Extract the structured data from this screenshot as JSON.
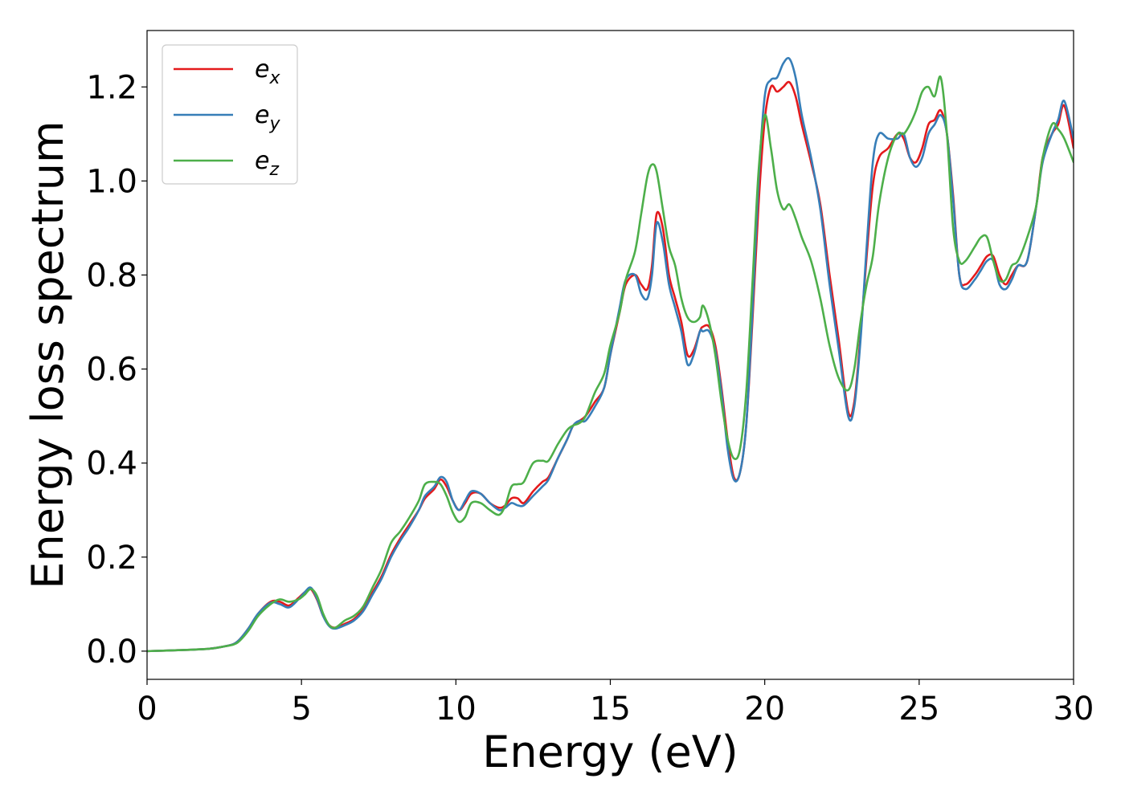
{
  "chart_data": {
    "type": "line",
    "title": "",
    "xlabel": "Energy (eV)",
    "ylabel": "Energy loss spectrum",
    "xlim": [
      0,
      30
    ],
    "ylim": [
      -0.06,
      1.32
    ],
    "xticks": [
      0,
      5,
      10,
      15,
      20,
      25,
      30
    ],
    "yticks": [
      0.0,
      0.2,
      0.4,
      0.6,
      0.8,
      1.0,
      1.2
    ],
    "xtick_labels": [
      "0",
      "5",
      "10",
      "15",
      "20",
      "25",
      "30"
    ],
    "ytick_labels": [
      "0.0",
      "0.2",
      "0.4",
      "0.6",
      "0.8",
      "1.0",
      "1.2"
    ],
    "grid": false,
    "legend_position": "top-left",
    "series": [
      {
        "name": "e_x",
        "label_base": "e",
        "label_sub": "x",
        "color": "#e41a1c",
        "x": [
          0,
          1,
          2,
          2.5,
          2.8,
          3.0,
          3.3,
          3.6,
          4.0,
          4.3,
          4.6,
          4.9,
          5.1,
          5.3,
          5.5,
          5.7,
          5.9,
          6.1,
          6.4,
          6.7,
          7.0,
          7.3,
          7.6,
          7.9,
          8.2,
          8.5,
          8.8,
          9.0,
          9.3,
          9.5,
          9.7,
          9.9,
          10.1,
          10.3,
          10.5,
          10.8,
          11.1,
          11.4,
          11.6,
          11.8,
          12.0,
          12.2,
          12.5,
          12.8,
          13.0,
          13.3,
          13.6,
          13.8,
          14.0,
          14.2,
          14.5,
          14.8,
          15.0,
          15.3,
          15.5,
          15.8,
          16.0,
          16.2,
          16.35,
          16.5,
          16.7,
          16.9,
          17.1,
          17.3,
          17.5,
          17.7,
          17.9,
          18.0,
          18.2,
          18.4,
          18.6,
          18.8,
          19.0,
          19.2,
          19.4,
          19.6,
          19.8,
          20.0,
          20.2,
          20.4,
          20.6,
          20.8,
          21.0,
          21.2,
          21.5,
          21.8,
          22.1,
          22.4,
          22.7,
          22.9,
          23.1,
          23.3,
          23.5,
          23.7,
          24.0,
          24.3,
          24.5,
          24.7,
          24.9,
          25.1,
          25.3,
          25.5,
          25.7,
          25.9,
          26.1,
          26.3,
          26.5,
          26.8,
          27.0,
          27.2,
          27.4,
          27.6,
          27.8,
          28.0,
          28.2,
          28.5,
          28.8,
          29.0,
          29.3,
          29.5,
          29.7,
          30.0
        ],
        "y": [
          0.0,
          0.002,
          0.005,
          0.01,
          0.015,
          0.025,
          0.05,
          0.08,
          0.105,
          0.105,
          0.097,
          0.113,
          0.125,
          0.132,
          0.11,
          0.075,
          0.055,
          0.05,
          0.058,
          0.068,
          0.09,
          0.125,
          0.16,
          0.205,
          0.24,
          0.27,
          0.3,
          0.325,
          0.345,
          0.365,
          0.35,
          0.32,
          0.3,
          0.315,
          0.335,
          0.335,
          0.315,
          0.305,
          0.31,
          0.325,
          0.325,
          0.315,
          0.34,
          0.36,
          0.37,
          0.41,
          0.45,
          0.48,
          0.49,
          0.5,
          0.53,
          0.56,
          0.63,
          0.72,
          0.78,
          0.8,
          0.78,
          0.77,
          0.82,
          0.93,
          0.9,
          0.8,
          0.75,
          0.7,
          0.63,
          0.64,
          0.68,
          0.69,
          0.69,
          0.65,
          0.56,
          0.45,
          0.37,
          0.38,
          0.48,
          0.7,
          0.95,
          1.13,
          1.2,
          1.19,
          1.2,
          1.21,
          1.18,
          1.12,
          1.04,
          0.95,
          0.8,
          0.66,
          0.51,
          0.53,
          0.67,
          0.84,
          0.99,
          1.05,
          1.07,
          1.1,
          1.09,
          1.05,
          1.04,
          1.07,
          1.12,
          1.13,
          1.15,
          1.1,
          0.97,
          0.8,
          0.78,
          0.8,
          0.82,
          0.84,
          0.84,
          0.8,
          0.78,
          0.8,
          0.82,
          0.83,
          0.95,
          1.05,
          1.1,
          1.12,
          1.16,
          1.07
        ]
      },
      {
        "name": "e_y",
        "label_base": "e",
        "label_sub": "y",
        "color": "#377eb8",
        "x": [
          0,
          1,
          2,
          2.5,
          2.8,
          3.0,
          3.3,
          3.6,
          4.0,
          4.3,
          4.6,
          4.9,
          5.1,
          5.3,
          5.5,
          5.7,
          5.9,
          6.1,
          6.4,
          6.7,
          7.0,
          7.3,
          7.6,
          7.9,
          8.2,
          8.5,
          8.8,
          9.0,
          9.3,
          9.5,
          9.7,
          9.9,
          10.1,
          10.3,
          10.5,
          10.8,
          11.1,
          11.4,
          11.6,
          11.8,
          12.0,
          12.2,
          12.5,
          12.8,
          13.0,
          13.3,
          13.6,
          13.8,
          14.0,
          14.2,
          14.5,
          14.8,
          15.0,
          15.3,
          15.5,
          15.8,
          16.0,
          16.2,
          16.35,
          16.5,
          16.7,
          16.9,
          17.1,
          17.3,
          17.5,
          17.7,
          17.9,
          18.0,
          18.2,
          18.4,
          18.6,
          18.8,
          19.0,
          19.2,
          19.4,
          19.6,
          19.8,
          20.0,
          20.2,
          20.4,
          20.6,
          20.8,
          21.0,
          21.2,
          21.5,
          21.8,
          22.1,
          22.4,
          22.7,
          22.9,
          23.1,
          23.3,
          23.5,
          23.7,
          24.0,
          24.3,
          24.5,
          24.7,
          24.9,
          25.1,
          25.3,
          25.5,
          25.7,
          25.9,
          26.1,
          26.3,
          26.5,
          26.8,
          27.0,
          27.2,
          27.4,
          27.6,
          27.8,
          28.0,
          28.2,
          28.5,
          28.8,
          29.0,
          29.3,
          29.5,
          29.7,
          30.0
        ],
        "y": [
          0.0,
          0.002,
          0.005,
          0.01,
          0.015,
          0.025,
          0.05,
          0.08,
          0.103,
          0.1,
          0.093,
          0.11,
          0.125,
          0.135,
          0.112,
          0.075,
          0.053,
          0.048,
          0.055,
          0.065,
          0.085,
          0.12,
          0.155,
          0.2,
          0.235,
          0.265,
          0.3,
          0.33,
          0.35,
          0.37,
          0.36,
          0.32,
          0.3,
          0.32,
          0.34,
          0.335,
          0.315,
          0.3,
          0.305,
          0.315,
          0.31,
          0.31,
          0.33,
          0.35,
          0.365,
          0.41,
          0.45,
          0.48,
          0.49,
          0.49,
          0.52,
          0.56,
          0.63,
          0.73,
          0.79,
          0.8,
          0.76,
          0.75,
          0.8,
          0.91,
          0.87,
          0.78,
          0.73,
          0.68,
          0.61,
          0.63,
          0.68,
          0.68,
          0.68,
          0.64,
          0.55,
          0.43,
          0.365,
          0.38,
          0.48,
          0.72,
          1.0,
          1.18,
          1.215,
          1.22,
          1.25,
          1.26,
          1.22,
          1.14,
          1.05,
          0.94,
          0.78,
          0.64,
          0.5,
          0.52,
          0.66,
          0.86,
          1.04,
          1.1,
          1.09,
          1.09,
          1.1,
          1.05,
          1.03,
          1.05,
          1.1,
          1.12,
          1.14,
          1.1,
          0.96,
          0.8,
          0.77,
          0.79,
          0.81,
          0.83,
          0.83,
          0.78,
          0.77,
          0.79,
          0.82,
          0.83,
          0.95,
          1.04,
          1.1,
          1.13,
          1.17,
          1.09
        ]
      },
      {
        "name": "e_z",
        "label_base": "e",
        "label_sub": "z",
        "color": "#4daf4a",
        "x": [
          0,
          1,
          2,
          2.5,
          2.8,
          3.0,
          3.3,
          3.6,
          4.0,
          4.3,
          4.6,
          4.9,
          5.1,
          5.3,
          5.5,
          5.7,
          5.9,
          6.1,
          6.4,
          6.7,
          7.0,
          7.3,
          7.6,
          7.9,
          8.2,
          8.5,
          8.8,
          9.0,
          9.3,
          9.5,
          9.7,
          9.9,
          10.1,
          10.3,
          10.5,
          10.8,
          11.1,
          11.4,
          11.6,
          11.8,
          12.0,
          12.2,
          12.5,
          12.8,
          13.0,
          13.3,
          13.6,
          13.8,
          14.0,
          14.2,
          14.5,
          14.8,
          15.0,
          15.3,
          15.5,
          15.8,
          16.0,
          16.2,
          16.35,
          16.5,
          16.7,
          16.9,
          17.1,
          17.3,
          17.5,
          17.7,
          17.9,
          18.0,
          18.2,
          18.4,
          18.6,
          18.8,
          19.0,
          19.2,
          19.4,
          19.6,
          19.8,
          20.0,
          20.2,
          20.4,
          20.6,
          20.8,
          21.0,
          21.2,
          21.5,
          21.8,
          22.1,
          22.4,
          22.7,
          22.9,
          23.1,
          23.3,
          23.5,
          23.7,
          24.0,
          24.3,
          24.5,
          24.7,
          24.9,
          25.1,
          25.3,
          25.5,
          25.7,
          25.9,
          26.1,
          26.3,
          26.5,
          26.8,
          27.0,
          27.2,
          27.4,
          27.6,
          27.8,
          28.0,
          28.2,
          28.5,
          28.8,
          29.0,
          29.3,
          29.5,
          29.7,
          30.0
        ],
        "y": [
          0.0,
          0.002,
          0.005,
          0.01,
          0.014,
          0.022,
          0.045,
          0.075,
          0.1,
          0.11,
          0.105,
          0.11,
          0.12,
          0.132,
          0.118,
          0.08,
          0.055,
          0.05,
          0.065,
          0.075,
          0.095,
          0.135,
          0.175,
          0.23,
          0.255,
          0.285,
          0.32,
          0.355,
          0.36,
          0.355,
          0.33,
          0.295,
          0.275,
          0.285,
          0.315,
          0.315,
          0.3,
          0.29,
          0.31,
          0.35,
          0.355,
          0.36,
          0.4,
          0.405,
          0.405,
          0.44,
          0.47,
          0.48,
          0.485,
          0.5,
          0.55,
          0.59,
          0.65,
          0.72,
          0.79,
          0.85,
          0.93,
          1.01,
          1.035,
          1.02,
          0.94,
          0.86,
          0.82,
          0.75,
          0.71,
          0.7,
          0.71,
          0.735,
          0.7,
          0.63,
          0.53,
          0.45,
          0.41,
          0.43,
          0.55,
          0.78,
          1.02,
          1.14,
          1.07,
          0.98,
          0.94,
          0.95,
          0.92,
          0.88,
          0.83,
          0.75,
          0.65,
          0.58,
          0.555,
          0.6,
          0.7,
          0.78,
          0.84,
          0.95,
          1.05,
          1.1,
          1.1,
          1.12,
          1.15,
          1.19,
          1.2,
          1.18,
          1.22,
          1.1,
          0.9,
          0.83,
          0.83,
          0.86,
          0.88,
          0.88,
          0.83,
          0.79,
          0.79,
          0.82,
          0.83,
          0.88,
          0.95,
          1.05,
          1.12,
          1.11,
          1.09,
          1.04
        ]
      }
    ]
  }
}
